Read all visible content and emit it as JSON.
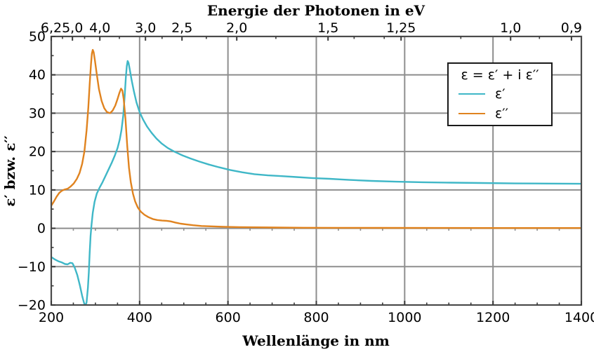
{
  "chart_data": {
    "type": "line",
    "top_axis_label": "Energie der Photonen in eV",
    "xlabel": "Wellenlänge in nm",
    "ylabel": "ε′ bzw. ε′′",
    "x_axis": {
      "unit": "nm",
      "min": 200,
      "max": 1400,
      "minor_tick_step": 50,
      "major_ticks": [
        {
          "value": 200,
          "label": "200"
        },
        {
          "value": 400,
          "label": "400"
        },
        {
          "value": 600,
          "label": "600"
        },
        {
          "value": 800,
          "label": "800"
        },
        {
          "value": 1000,
          "label": "1000"
        },
        {
          "value": 1200,
          "label": "1200"
        },
        {
          "value": 1400,
          "label": "1400"
        }
      ]
    },
    "y_axis": {
      "min": -20,
      "max": 50,
      "minor_tick_step": 5,
      "major_ticks": [
        {
          "value": 50,
          "label": "50"
        },
        {
          "value": 40,
          "label": "40"
        },
        {
          "value": 30,
          "label": "30"
        },
        {
          "value": 20,
          "label": "20"
        },
        {
          "value": 10,
          "label": "10"
        },
        {
          "value": 0,
          "label": "0"
        },
        {
          "value": -10,
          "label": "−10"
        },
        {
          "value": -20,
          "label": "−20"
        }
      ]
    },
    "top_axis": {
      "unit": "eV",
      "ev_nm_product": 1239.84,
      "major_ticks": [
        {
          "energy": 6.2,
          "label": "6,2"
        },
        {
          "energy": 5.0,
          "label": "5,0"
        },
        {
          "energy": 4.0,
          "label": "4,0"
        },
        {
          "energy": 3.0,
          "label": "3,0"
        },
        {
          "energy": 2.5,
          "label": "2,5"
        },
        {
          "energy": 2.0,
          "label": "2,0"
        },
        {
          "energy": 1.5,
          "label": "1,5"
        },
        {
          "energy": 1.25,
          "label": "1,25"
        },
        {
          "energy": 1.0,
          "label": "1,0"
        },
        {
          "energy": 0.9,
          "label": "0,9"
        }
      ],
      "minor_tick_energies": [
        5.5,
        4.5,
        3.5,
        2.75,
        2.25,
        1.75,
        1.4,
        1.3,
        1.1,
        0.95
      ]
    },
    "grid": true,
    "legend": {
      "title": "ε = ε′ + i ε′′",
      "position": "upper right",
      "entries": [
        {
          "name": "ε′",
          "color": "#3fb7c7"
        },
        {
          "name": "ε′′",
          "color": "#e0831f"
        }
      ]
    },
    "series": [
      {
        "name": "ε′",
        "color": "#3fb7c7",
        "points": [
          [
            200,
            -7.5
          ],
          [
            208,
            -8.1
          ],
          [
            216,
            -8.6
          ],
          [
            224,
            -8.9
          ],
          [
            231,
            -9.3
          ],
          [
            237,
            -9.4
          ],
          [
            243,
            -9.0
          ],
          [
            248,
            -9.1
          ],
          [
            253,
            -10.2
          ],
          [
            259,
            -12.2
          ],
          [
            265,
            -15.0
          ],
          [
            270,
            -17.6
          ],
          [
            274,
            -19.4
          ],
          [
            277,
            -20.3
          ],
          [
            280,
            -19.3
          ],
          [
            283,
            -15.5
          ],
          [
            285,
            -11.5
          ],
          [
            287,
            -6.5
          ],
          [
            289,
            -2.0
          ],
          [
            291,
            0.8
          ],
          [
            294,
            4.0
          ],
          [
            298,
            6.9
          ],
          [
            303,
            9.0
          ],
          [
            309,
            10.5
          ],
          [
            316,
            12.0
          ],
          [
            323,
            13.7
          ],
          [
            330,
            15.4
          ],
          [
            337,
            17.1
          ],
          [
            344,
            19.0
          ],
          [
            350,
            20.9
          ],
          [
            355,
            23.1
          ],
          [
            359,
            25.6
          ],
          [
            363,
            29.5
          ],
          [
            366,
            34.0
          ],
          [
            369,
            39.5
          ],
          [
            371,
            42.3
          ],
          [
            373,
            43.6
          ],
          [
            375,
            43.1
          ],
          [
            378,
            41.2
          ],
          [
            382,
            38.6
          ],
          [
            387,
            35.7
          ],
          [
            393,
            32.8
          ],
          [
            400,
            30.3
          ],
          [
            408,
            28.3
          ],
          [
            417,
            26.5
          ],
          [
            427,
            24.9
          ],
          [
            438,
            23.4
          ],
          [
            450,
            22.1
          ],
          [
            464,
            20.9
          ],
          [
            480,
            19.9
          ],
          [
            497,
            19.0
          ],
          [
            515,
            18.2
          ],
          [
            535,
            17.4
          ],
          [
            557,
            16.6
          ],
          [
            580,
            15.9
          ],
          [
            605,
            15.2
          ],
          [
            632,
            14.6
          ],
          [
            660,
            14.1
          ],
          [
            690,
            13.8
          ],
          [
            722,
            13.6
          ],
          [
            755,
            13.35
          ],
          [
            790,
            13.1
          ],
          [
            830,
            12.9
          ],
          [
            875,
            12.6
          ],
          [
            925,
            12.35
          ],
          [
            980,
            12.15
          ],
          [
            1040,
            12.0
          ],
          [
            1105,
            11.9
          ],
          [
            1175,
            11.8
          ],
          [
            1250,
            11.7
          ],
          [
            1325,
            11.65
          ],
          [
            1400,
            11.6
          ]
        ]
      },
      {
        "name": "ε′′",
        "color": "#e0831f",
        "points": [
          [
            200,
            5.9
          ],
          [
            206,
            7.0
          ],
          [
            212,
            8.2
          ],
          [
            218,
            9.2
          ],
          [
            224,
            9.8
          ],
          [
            230,
            10.1
          ],
          [
            237,
            10.3
          ],
          [
            244,
            10.9
          ],
          [
            251,
            11.7
          ],
          [
            258,
            12.9
          ],
          [
            264,
            14.4
          ],
          [
            270,
            16.8
          ],
          [
            275,
            20.0
          ],
          [
            280,
            25.5
          ],
          [
            284,
            31.5
          ],
          [
            287,
            37.5
          ],
          [
            290,
            42.8
          ],
          [
            292,
            45.6
          ],
          [
            294,
            46.5
          ],
          [
            296,
            45.9
          ],
          [
            299,
            43.6
          ],
          [
            303,
            40.2
          ],
          [
            308,
            36.3
          ],
          [
            314,
            33.2
          ],
          [
            320,
            31.3
          ],
          [
            326,
            30.3
          ],
          [
            333,
            30.0
          ],
          [
            339,
            30.7
          ],
          [
            345,
            32.0
          ],
          [
            350,
            33.7
          ],
          [
            354,
            35.2
          ],
          [
            358,
            36.4
          ],
          [
            361,
            35.9
          ],
          [
            364,
            33.6
          ],
          [
            368,
            28.5
          ],
          [
            372,
            21.5
          ],
          [
            376,
            15.8
          ],
          [
            380,
            12.0
          ],
          [
            385,
            9.0
          ],
          [
            390,
            7.0
          ],
          [
            396,
            5.4
          ],
          [
            403,
            4.3
          ],
          [
            411,
            3.5
          ],
          [
            420,
            2.9
          ],
          [
            430,
            2.4
          ],
          [
            440,
            2.15
          ],
          [
            451,
            2.0
          ],
          [
            461,
            1.95
          ],
          [
            470,
            1.8
          ],
          [
            481,
            1.5
          ],
          [
            493,
            1.2
          ],
          [
            506,
            1.0
          ],
          [
            521,
            0.8
          ],
          [
            540,
            0.6
          ],
          [
            562,
            0.5
          ],
          [
            590,
            0.4
          ],
          [
            625,
            0.3
          ],
          [
            665,
            0.25
          ],
          [
            710,
            0.2
          ],
          [
            770,
            0.15
          ],
          [
            850,
            0.12
          ],
          [
            950,
            0.1
          ],
          [
            1080,
            0.08
          ],
          [
            1230,
            0.07
          ],
          [
            1400,
            0.06
          ]
        ]
      }
    ]
  },
  "colors": {
    "background": "#ffffff",
    "grid": "#8e8e8e",
    "spine": "#4b4b4b",
    "tick": "#3a3a3a",
    "text": "#000000",
    "eps_real_curve": "#3fb7c7",
    "eps_imag_curve": "#e0831f"
  }
}
